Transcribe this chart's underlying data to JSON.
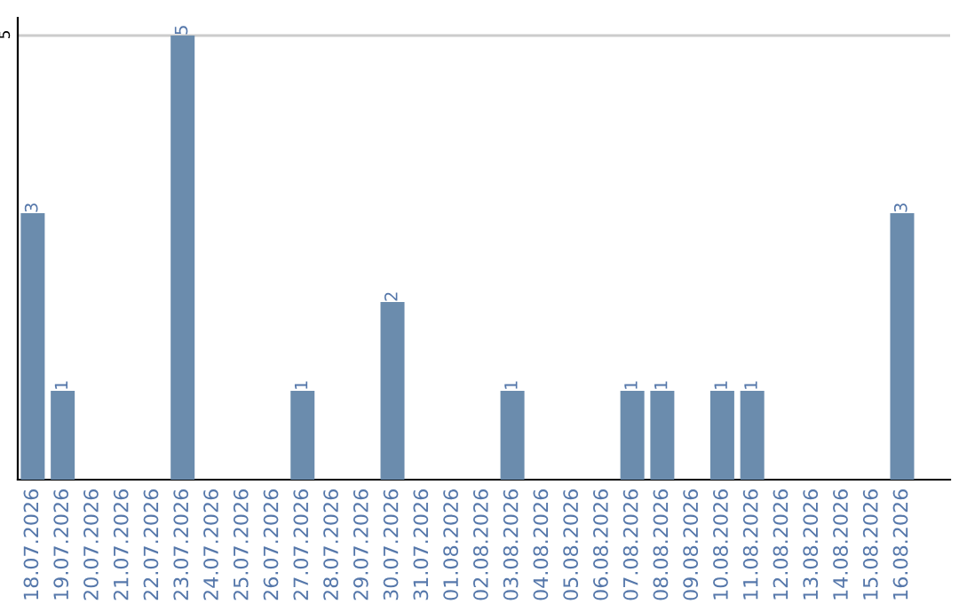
{
  "chart_data": {
    "type": "bar",
    "categories": [
      "18.07.2026",
      "19.07.2026",
      "20.07.2026",
      "21.07.2026",
      "22.07.2026",
      "23.07.2026",
      "24.07.2026",
      "25.07.2026",
      "26.07.2026",
      "27.07.2026",
      "28.07.2026",
      "29.07.2026",
      "30.07.2026",
      "31.07.2026",
      "01.08.2026",
      "02.08.2026",
      "03.08.2026",
      "04.08.2026",
      "05.08.2026",
      "06.08.2026",
      "07.08.2026",
      "08.08.2026",
      "09.08.2026",
      "10.08.2026",
      "11.08.2026",
      "12.08.2026",
      "13.08.2026",
      "14.08.2026",
      "15.08.2026",
      "16.08.2026"
    ],
    "values": [
      3,
      1,
      0,
      0,
      0,
      5,
      0,
      0,
      0,
      1,
      0,
      0,
      2,
      0,
      0,
      0,
      1,
      0,
      0,
      0,
      1,
      1,
      0,
      1,
      1,
      0,
      0,
      0,
      0,
      3
    ],
    "value_labels": [
      "3",
      "1",
      null,
      null,
      null,
      "5",
      null,
      null,
      null,
      "1",
      null,
      null,
      "2",
      null,
      null,
      null,
      "1",
      null,
      null,
      null,
      "1",
      "1",
      null,
      "1",
      "1",
      null,
      null,
      null,
      null,
      "3"
    ],
    "color": "#6b8cad",
    "ylim": [
      0,
      5.2
    ],
    "yticks": [
      5
    ],
    "grid": "y"
  }
}
